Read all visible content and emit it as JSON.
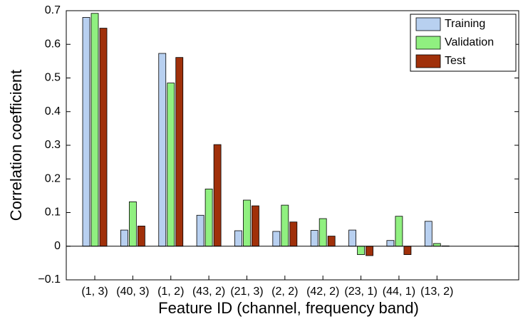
{
  "chart_data": {
    "type": "bar",
    "x_label": "Feature ID (channel, frequency band)",
    "y_label": "Correlation coefficient",
    "categories": [
      "(1, 3)",
      "(40, 3)",
      "(1, 2)",
      "(43, 2)",
      "(21, 3)",
      "(2, 2)",
      "(42, 2)",
      "(23, 1)",
      "(44, 1)",
      "(13, 2)"
    ],
    "series": [
      {
        "name": "Training",
        "color": "#b8d0f0",
        "values": [
          0.68,
          0.048,
          0.573,
          0.092,
          0.046,
          0.044,
          0.047,
          0.048,
          0.017,
          0.074
        ]
      },
      {
        "name": "Validation",
        "color": "#90f080",
        "values": [
          0.692,
          0.132,
          0.485,
          0.17,
          0.137,
          0.122,
          0.082,
          -0.025,
          0.089,
          0.008
        ]
      },
      {
        "name": "Test",
        "color": "#a0300a",
        "values": [
          0.648,
          0.06,
          0.561,
          0.302,
          0.12,
          0.072,
          0.03,
          -0.028,
          -0.025,
          0.001
        ]
      }
    ],
    "ylim": [
      -0.1,
      0.7
    ],
    "yticks": [
      {
        "value": -0.1,
        "label": "−0.1"
      },
      0,
      0.1,
      0.2,
      0.3,
      0.4,
      0.5,
      0.6,
      0.7
    ],
    "legend": "upper right"
  }
}
